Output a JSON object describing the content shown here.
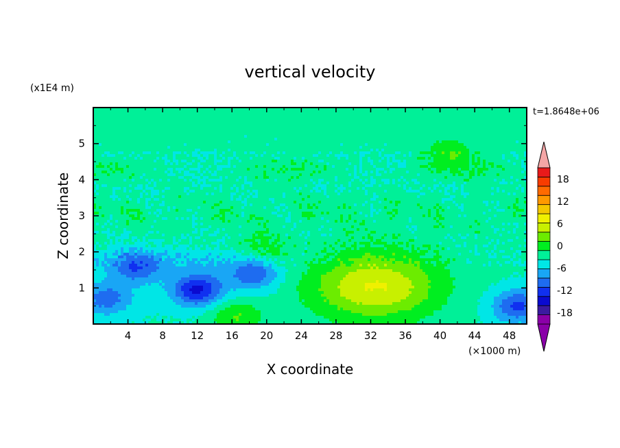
{
  "chart_data": {
    "type": "heatmap",
    "title": "vertical velocity",
    "xlabel": "X coordinate",
    "ylabel": "Z coordinate",
    "x_unit": "(×1000 m)",
    "y_unit": "(x1E4 m)",
    "time_label": "t=1.8648e+06",
    "xlim": [
      0,
      50
    ],
    "ylim": [
      0,
      6
    ],
    "x_ticks": [
      "4",
      "8",
      "12",
      "16",
      "20",
      "24",
      "28",
      "32",
      "36",
      "40",
      "44",
      "48"
    ],
    "y_ticks": [
      "1",
      "2",
      "3",
      "4",
      "5"
    ],
    "colorbar": {
      "min": -21,
      "max": 21,
      "step": 3,
      "tick_labels": [
        "18",
        "12",
        "6",
        "0",
        "-6",
        "-12",
        "-18"
      ],
      "colors": [
        "#8a00a8",
        "#3a1aa0",
        "#0a0ad0",
        "#1030f0",
        "#1e6cf0",
        "#19a6f5",
        "#00e6e6",
        "#00f098",
        "#00ee20",
        "#6cec00",
        "#c8f000",
        "#f0f000",
        "#f5c800",
        "#ff9900",
        "#ff6a00",
        "#f83c00",
        "#e81a1a"
      ],
      "overflow_high_color": "#f4a6a6",
      "overflow_low_color": "#8a00a8"
    },
    "field_features": [
      {
        "feature": "updraft",
        "x": 32.5,
        "z": 1.05,
        "peak": 12
      },
      {
        "feature": "downdraft",
        "x": 12,
        "z": 0.95,
        "peak": -13
      },
      {
        "feature": "downdraft",
        "x": 18.5,
        "z": 1.4,
        "peak": -9
      },
      {
        "feature": "downdraft",
        "x": 5,
        "z": 1.55,
        "peak": -8
      },
      {
        "feature": "downdraft",
        "x": 1.5,
        "z": 0.7,
        "peak": -8
      },
      {
        "feature": "downdraft",
        "x": 49,
        "z": 0.5,
        "peak": -10
      },
      {
        "feature": "updraft",
        "x": 16.5,
        "z": 0.2,
        "peak": 6
      },
      {
        "feature": "updraft",
        "x": 19.5,
        "z": 2.0,
        "peak": 5
      },
      {
        "feature": "updraft",
        "x": 41,
        "z": 4.75,
        "peak": 5
      }
    ]
  }
}
